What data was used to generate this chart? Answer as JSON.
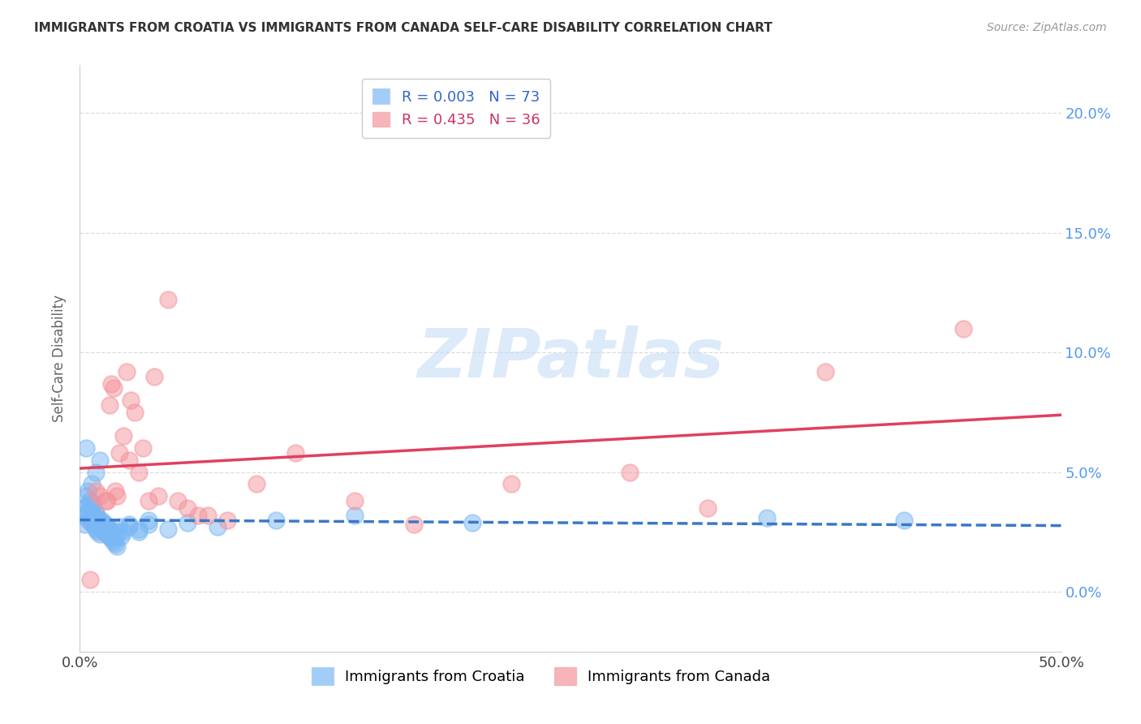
{
  "title": "IMMIGRANTS FROM CROATIA VS IMMIGRANTS FROM CANADA SELF-CARE DISABILITY CORRELATION CHART",
  "source": "Source: ZipAtlas.com",
  "ylabel": "Self-Care Disability",
  "xlim": [
    0.0,
    50.0
  ],
  "ylim": [
    -2.5,
    22.0
  ],
  "yticks": [
    0,
    5,
    10,
    15,
    20
  ],
  "ytick_labels": [
    "0.0%",
    "5.0%",
    "10.0%",
    "15.0%",
    "20.0%"
  ],
  "xtick_positions": [
    0,
    50
  ],
  "xtick_labels": [
    "0.0%",
    "50.0%"
  ],
  "croatia_color": "#7ab8f5",
  "canada_color": "#f4949c",
  "trend_croatia_color": "#3a78c9",
  "trend_canada_color": "#e04060",
  "background_color": "#ffffff",
  "grid_color": "#dddddd",
  "watermark": "ZIPatlas",
  "watermark_color": "#c5dcf5",
  "croatia_r": "0.003",
  "croatia_n": "73",
  "canada_r": "0.435",
  "canada_n": "36",
  "legend_bottom": [
    "Immigrants from Croatia",
    "Immigrants from Canada"
  ],
  "croatia_x": [
    0.15,
    0.2,
    0.25,
    0.3,
    0.35,
    0.4,
    0.45,
    0.5,
    0.5,
    0.55,
    0.6,
    0.65,
    0.7,
    0.7,
    0.75,
    0.8,
    0.8,
    0.85,
    0.9,
    0.9,
    0.95,
    1.0,
    1.0,
    1.05,
    1.1,
    1.15,
    1.2,
    1.25,
    1.3,
    1.35,
    1.4,
    1.5,
    1.6,
    1.7,
    1.8,
    2.0,
    2.2,
    2.5,
    3.0,
    3.5,
    0.3,
    0.4,
    0.5,
    0.6,
    0.7,
    0.8,
    0.9,
    1.0,
    1.1,
    1.2,
    1.3,
    1.4,
    1.5,
    1.6,
    1.7,
    1.8,
    1.9,
    2.0,
    2.1,
    2.5,
    3.0,
    3.5,
    4.5,
    5.5,
    7.0,
    10.0,
    14.0,
    20.0,
    35.0,
    42.0,
    0.6,
    0.8,
    1.0
  ],
  "croatia_y": [
    3.2,
    3.5,
    2.8,
    4.0,
    3.6,
    3.3,
    3.0,
    3.7,
    3.1,
    2.9,
    3.4,
    3.2,
    2.8,
    3.0,
    2.7,
    3.3,
    2.6,
    3.1,
    2.9,
    2.5,
    3.0,
    2.8,
    2.4,
    2.7,
    3.0,
    2.6,
    2.9,
    2.5,
    2.8,
    2.4,
    2.7,
    2.6,
    2.5,
    2.4,
    2.3,
    2.7,
    2.5,
    2.8,
    2.6,
    3.0,
    6.0,
    4.2,
    3.8,
    3.5,
    3.7,
    3.3,
    3.0,
    2.9,
    2.7,
    2.6,
    2.5,
    2.4,
    2.3,
    2.2,
    2.1,
    2.0,
    1.9,
    2.5,
    2.3,
    2.7,
    2.5,
    2.8,
    2.6,
    2.9,
    2.7,
    3.0,
    3.2,
    2.9,
    3.1,
    3.0,
    4.5,
    5.0,
    5.5
  ],
  "canada_x": [
    0.5,
    0.8,
    1.0,
    1.3,
    1.5,
    1.6,
    1.7,
    1.8,
    2.0,
    2.2,
    2.4,
    2.6,
    2.8,
    3.0,
    3.5,
    3.8,
    4.5,
    5.5,
    6.5,
    7.5,
    9.0,
    11.0,
    14.0,
    17.0,
    22.0,
    28.0,
    32.0,
    38.0,
    45.0,
    1.4,
    1.9,
    2.5,
    3.2,
    4.0,
    5.0,
    6.0
  ],
  "canada_y": [
    0.5,
    4.2,
    4.0,
    3.8,
    7.8,
    8.7,
    8.5,
    4.2,
    5.8,
    6.5,
    9.2,
    8.0,
    7.5,
    5.0,
    3.8,
    9.0,
    12.2,
    3.5,
    3.2,
    3.0,
    4.5,
    5.8,
    3.8,
    2.8,
    4.5,
    5.0,
    3.5,
    9.2,
    11.0,
    3.8,
    4.0,
    5.5,
    6.0,
    4.0,
    3.8,
    3.2
  ]
}
